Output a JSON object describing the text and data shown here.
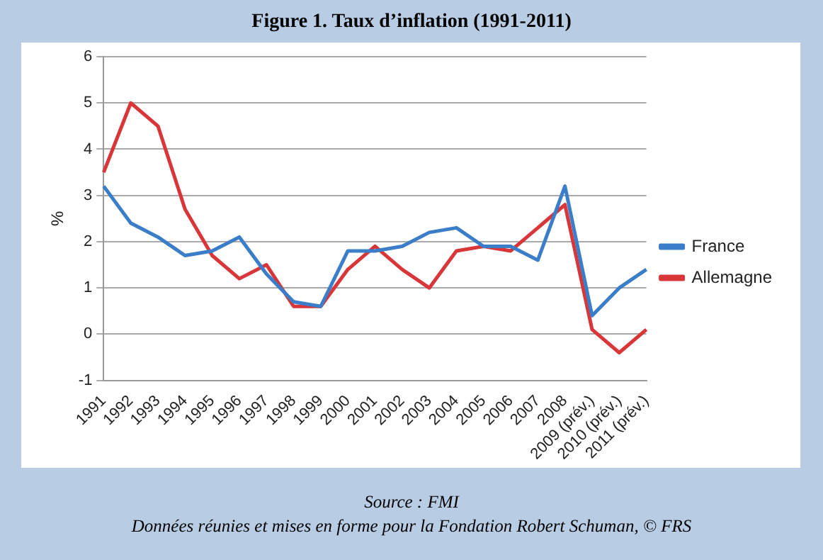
{
  "chart_data": {
    "type": "line",
    "title": "Figure 1. Taux d’inflation (1991-2011)",
    "ylabel": "%",
    "categories": [
      "1991",
      "1992",
      "1993",
      "1994",
      "1995",
      "1996",
      "1997",
      "1998",
      "1999",
      "2000",
      "2001",
      "2002",
      "2003",
      "2004",
      "2005",
      "2006",
      "2007",
      "2008",
      "2009 (prév.)",
      "2010 (prév.)",
      "2011 (prév.)"
    ],
    "series": [
      {
        "name": "France",
        "color": "#3a7dc9",
        "values": [
          3.2,
          2.4,
          2.1,
          1.7,
          1.8,
          2.1,
          1.3,
          0.7,
          0.6,
          1.8,
          1.8,
          1.9,
          2.2,
          2.3,
          1.9,
          1.9,
          1.6,
          3.2,
          0.4,
          1.0,
          1.4
        ]
      },
      {
        "name": "Allemagne",
        "color": "#d9363a",
        "values": [
          3.5,
          5.0,
          4.5,
          2.7,
          1.7,
          1.2,
          1.5,
          0.6,
          0.6,
          1.4,
          1.9,
          1.4,
          1.0,
          1.8,
          1.9,
          1.8,
          2.3,
          2.8,
          0.1,
          -0.4,
          0.1
        ]
      }
    ],
    "ylim": [
      -1,
      6
    ],
    "yticks": [
      -1,
      0,
      1,
      2,
      3,
      4,
      5,
      6
    ],
    "grid": "y",
    "legend": "right",
    "marker": "none",
    "line_style": "solid",
    "annotations": [
      "Source : FMI",
      "Données réunies et mises en forme pour la Fondation Robert Schuman, © FRS"
    ]
  }
}
